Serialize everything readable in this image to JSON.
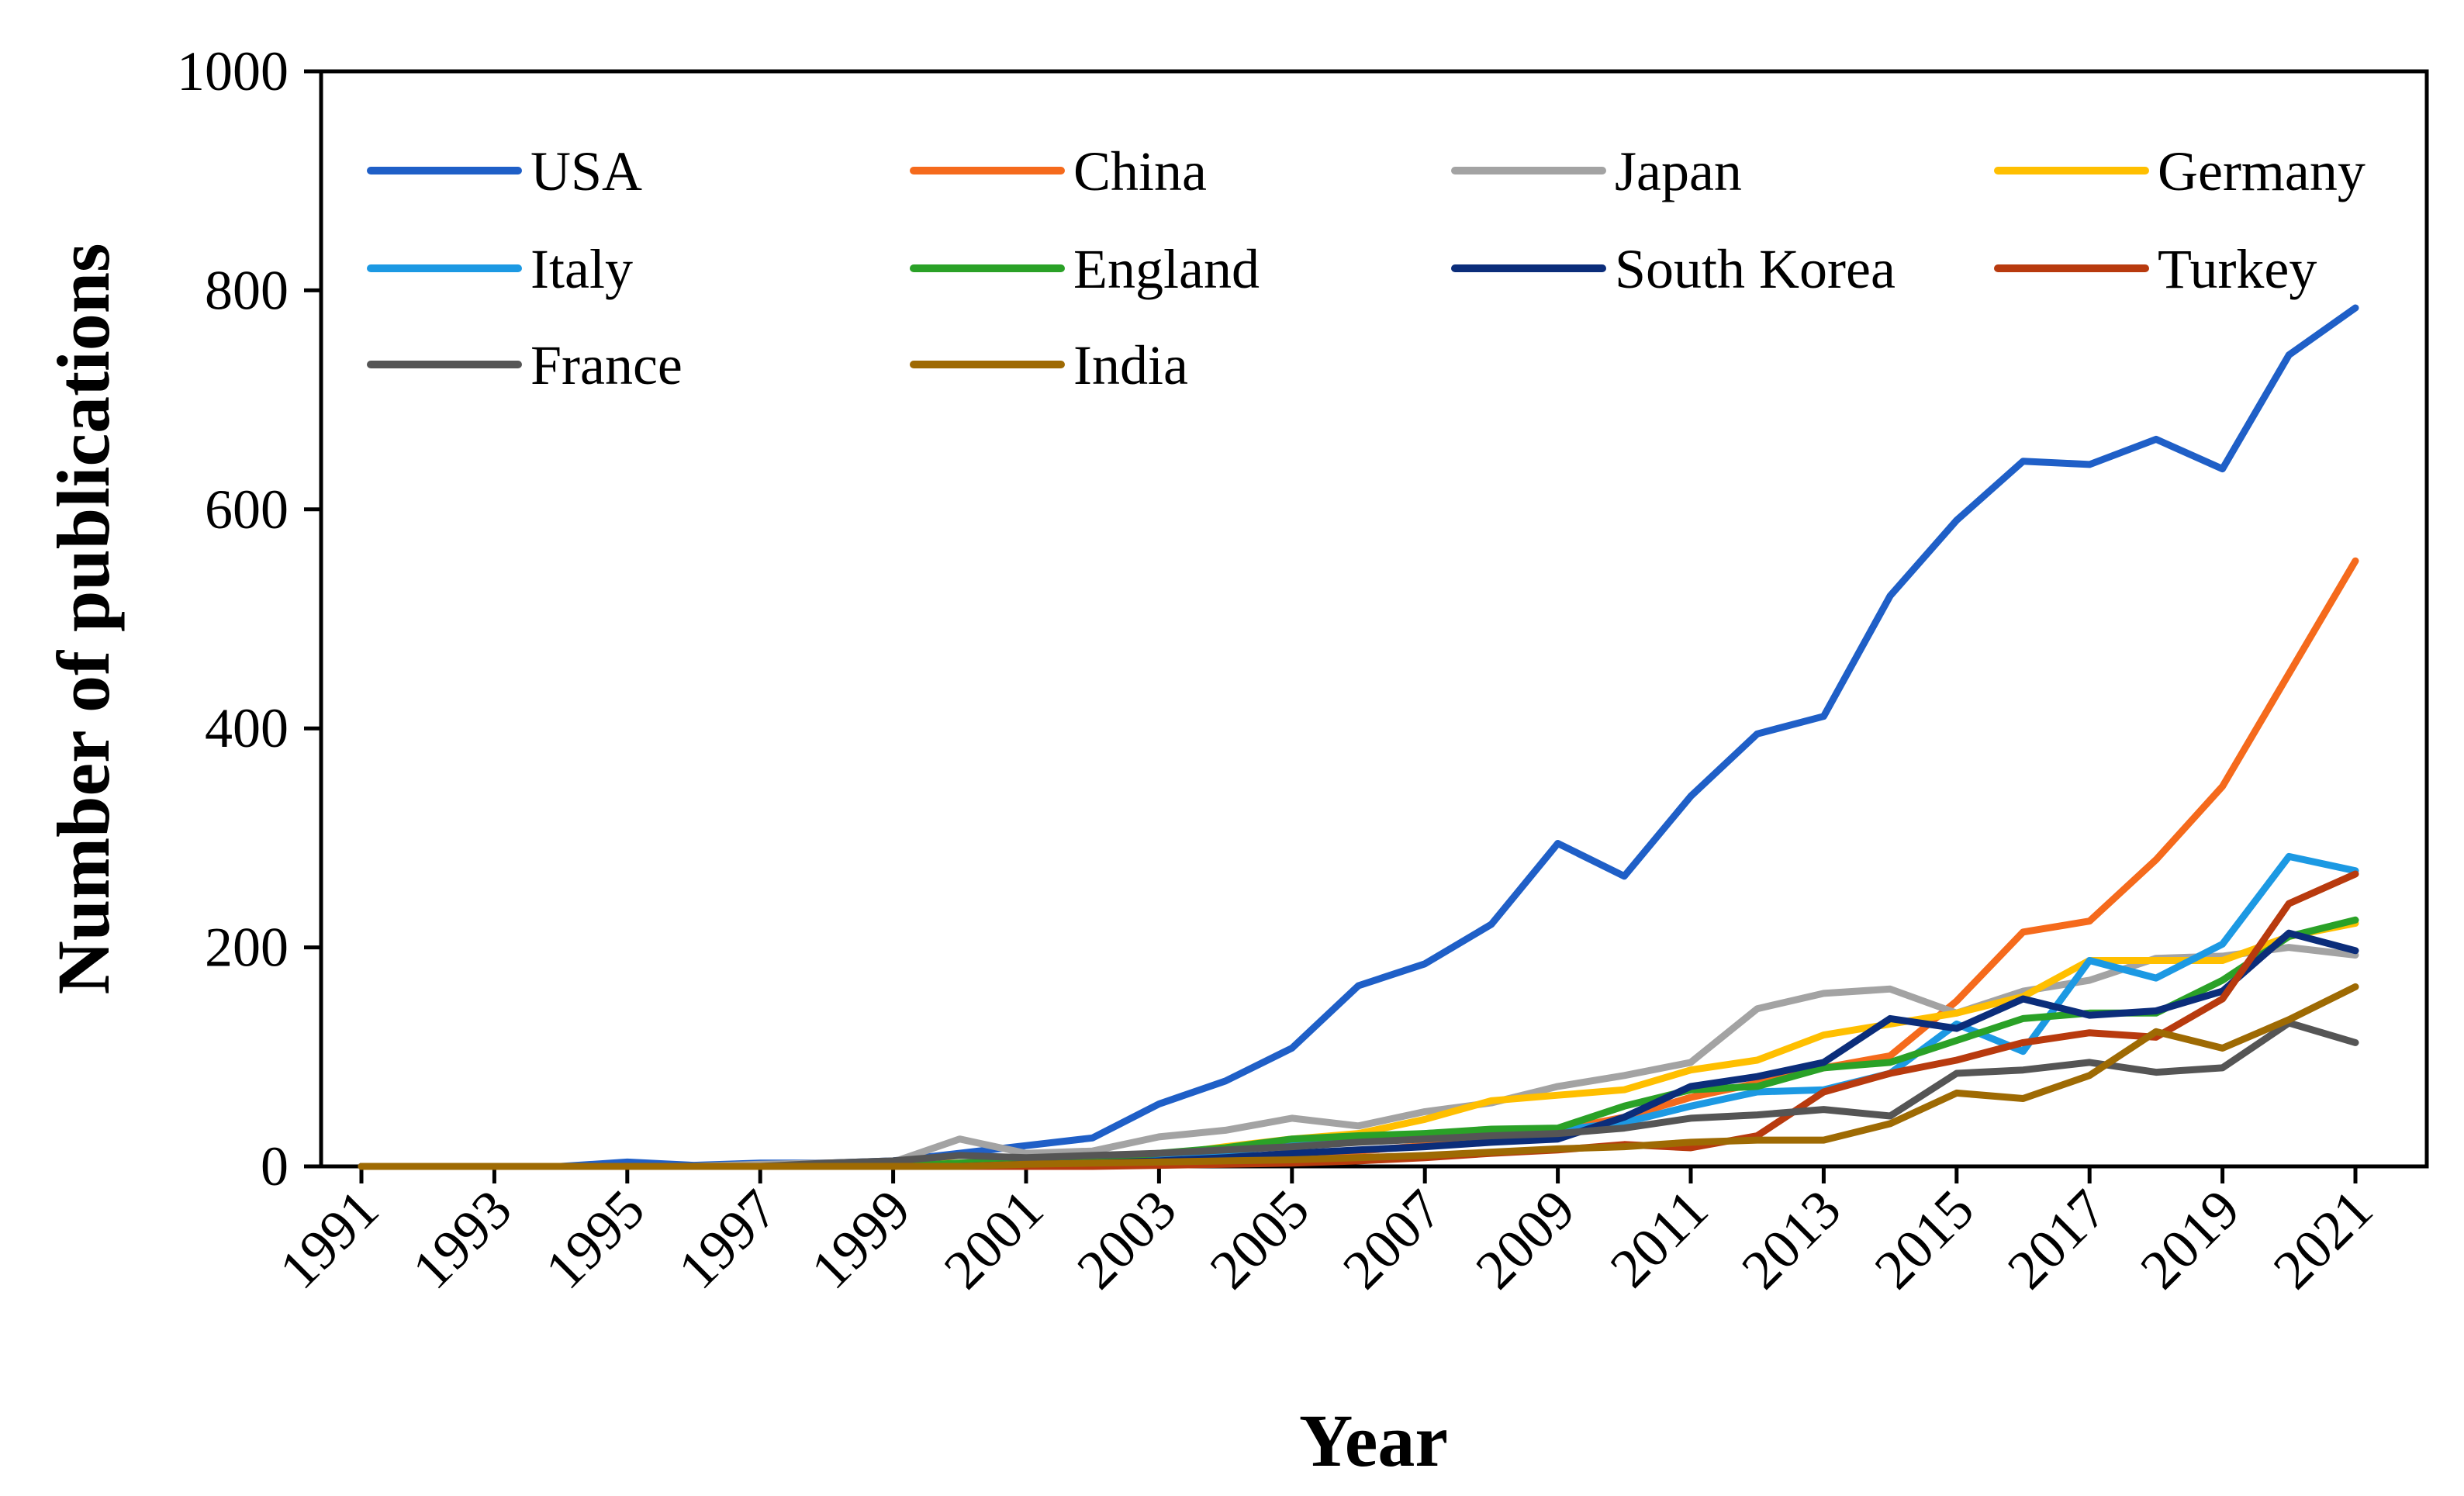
{
  "chart_data": {
    "type": "line",
    "title": "",
    "xlabel": "Year",
    "ylabel": "Number of publications",
    "ylim": [
      0,
      1000
    ],
    "yticks": [
      0,
      200,
      400,
      600,
      800,
      1000
    ],
    "ytick_labels": [
      "0",
      "200",
      "400",
      "600",
      "800",
      "1000"
    ],
    "xlim": [
      1991,
      2021
    ],
    "xtick_labels": [
      "1991",
      "1993",
      "1995",
      "1997",
      "1999",
      "2001",
      "2003",
      "2005",
      "2007",
      "2009",
      "2011",
      "2013",
      "2015",
      "2017",
      "2019",
      "2021"
    ],
    "grid": false,
    "legend_position": "top",
    "x": [
      1991,
      1992,
      1993,
      1994,
      1995,
      1996,
      1997,
      1998,
      1999,
      2000,
      2001,
      2002,
      2003,
      2004,
      2005,
      2006,
      2007,
      2008,
      2009,
      2010,
      2011,
      2012,
      2013,
      2014,
      2015,
      2016,
      2017,
      2018,
      2019,
      2020,
      2021
    ],
    "series": [
      {
        "name": "USA",
        "color": "#1f5fc7",
        "values": [
          0,
          0,
          0,
          0,
          4,
          1,
          3,
          3,
          5,
          12,
          19,
          26,
          57,
          78,
          108,
          165,
          185,
          221,
          295,
          265,
          338,
          395,
          411,
          521,
          590,
          644,
          641,
          664,
          637,
          741,
          784
        ]
      },
      {
        "name": "China",
        "color": "#f56a1c",
        "values": [
          0,
          0,
          0,
          0,
          0,
          0,
          0,
          0,
          0,
          0,
          2,
          3,
          3,
          5,
          8,
          14,
          19,
          25,
          33,
          45,
          63,
          76,
          90,
          101,
          151,
          214,
          224,
          280,
          347,
          450,
          553
        ]
      },
      {
        "name": "Japan",
        "color": "#a3a3a3",
        "values": [
          0,
          0,
          0,
          0,
          0,
          0,
          2,
          3,
          4,
          25,
          12,
          14,
          27,
          33,
          44,
          37,
          50,
          58,
          73,
          83,
          95,
          144,
          158,
          162,
          140,
          160,
          170,
          190,
          192,
          200,
          193
        ]
      },
      {
        "name": "Germany",
        "color": "#ffbf00",
        "values": [
          0,
          0,
          0,
          0,
          0,
          0,
          0,
          0,
          2,
          3,
          5,
          6,
          10,
          18,
          25,
          30,
          43,
          60,
          65,
          70,
          88,
          97,
          120,
          130,
          140,
          155,
          188,
          188,
          188,
          210,
          222
        ]
      },
      {
        "name": "Italy",
        "color": "#1c99e3",
        "values": [
          0,
          0,
          0,
          0,
          0,
          0,
          0,
          0,
          0,
          2,
          3,
          5,
          8,
          13,
          20,
          25,
          30,
          33,
          33,
          40,
          55,
          68,
          70,
          85,
          130,
          105,
          188,
          172,
          203,
          283,
          270
        ]
      },
      {
        "name": "England",
        "color": "#2aa127",
        "values": [
          0,
          0,
          0,
          0,
          0,
          0,
          0,
          0,
          0,
          3,
          5,
          7,
          12,
          17,
          25,
          28,
          30,
          34,
          35,
          55,
          70,
          73,
          90,
          95,
          115,
          135,
          140,
          140,
          170,
          210,
          225
        ]
      },
      {
        "name": "South Korea",
        "color": "#0b2d7a",
        "values": [
          0,
          0,
          0,
          0,
          0,
          0,
          0,
          0,
          0,
          0,
          2,
          3,
          5,
          8,
          12,
          15,
          18,
          22,
          25,
          45,
          73,
          82,
          95,
          135,
          126,
          153,
          138,
          142,
          160,
          213,
          197
        ]
      },
      {
        "name": "Turkey",
        "color": "#b83a0e",
        "values": [
          0,
          0,
          0,
          0,
          0,
          0,
          0,
          0,
          0,
          0,
          0,
          0,
          1,
          2,
          3,
          5,
          8,
          12,
          15,
          20,
          17,
          28,
          68,
          85,
          97,
          113,
          122,
          118,
          153,
          240,
          267
        ]
      },
      {
        "name": "France",
        "color": "#555555",
        "values": [
          0,
          0,
          0,
          0,
          0,
          0,
          0,
          3,
          5,
          10,
          8,
          10,
          12,
          15,
          18,
          22,
          25,
          28,
          30,
          35,
          44,
          47,
          52,
          46,
          85,
          88,
          95,
          86,
          90,
          131,
          113
        ]
      },
      {
        "name": "India",
        "color": "#9e6a03",
        "values": [
          0,
          0,
          0,
          0,
          0,
          0,
          0,
          0,
          0,
          0,
          2,
          3,
          4,
          5,
          6,
          8,
          10,
          13,
          16,
          18,
          22,
          24,
          24,
          39,
          67,
          62,
          83,
          123,
          108,
          134,
          164
        ]
      }
    ]
  }
}
